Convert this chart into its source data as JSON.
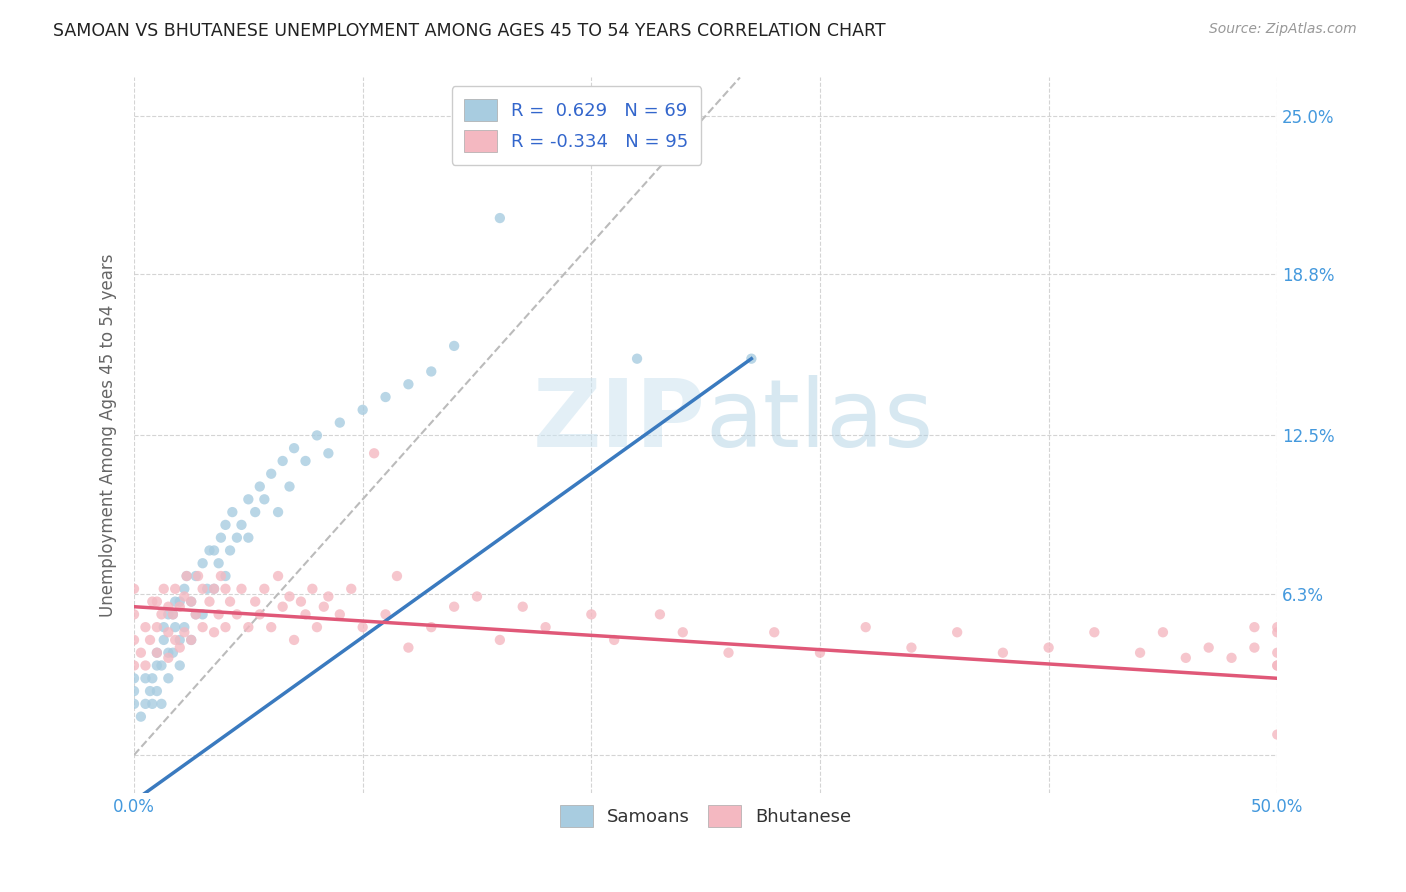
{
  "title": "SAMOAN VS BHUTANESE UNEMPLOYMENT AMONG AGES 45 TO 54 YEARS CORRELATION CHART",
  "source": "Source: ZipAtlas.com",
  "ylabel": "Unemployment Among Ages 45 to 54 years",
  "xlim": [
    0.0,
    0.5
  ],
  "ylim": [
    -0.015,
    0.265
  ],
  "ytick_positions": [
    0.0,
    0.063,
    0.125,
    0.188,
    0.25
  ],
  "ytick_labels": [
    "",
    "6.3%",
    "12.5%",
    "18.8%",
    "25.0%"
  ],
  "samoan_color": "#a8cce0",
  "bhutanese_color": "#f4b8c1",
  "samoan_line_color": "#3a7abf",
  "bhutanese_line_color": "#e05878",
  "diagonal_color": "#bbbbbb",
  "R_samoan": 0.629,
  "N_samoan": 69,
  "R_bhutanese": -0.334,
  "N_bhutanese": 95,
  "samoan_scatter_x": [
    0.0,
    0.0,
    0.0,
    0.003,
    0.005,
    0.005,
    0.007,
    0.008,
    0.008,
    0.01,
    0.01,
    0.01,
    0.012,
    0.012,
    0.013,
    0.013,
    0.015,
    0.015,
    0.015,
    0.017,
    0.017,
    0.018,
    0.018,
    0.02,
    0.02,
    0.02,
    0.022,
    0.022,
    0.023,
    0.025,
    0.025,
    0.027,
    0.027,
    0.03,
    0.03,
    0.032,
    0.033,
    0.035,
    0.035,
    0.037,
    0.038,
    0.04,
    0.04,
    0.042,
    0.043,
    0.045,
    0.047,
    0.05,
    0.05,
    0.053,
    0.055,
    0.057,
    0.06,
    0.063,
    0.065,
    0.068,
    0.07,
    0.075,
    0.08,
    0.085,
    0.09,
    0.1,
    0.11,
    0.12,
    0.13,
    0.14,
    0.16,
    0.22,
    0.27
  ],
  "samoan_scatter_y": [
    0.02,
    0.025,
    0.03,
    0.015,
    0.02,
    0.03,
    0.025,
    0.02,
    0.03,
    0.025,
    0.035,
    0.04,
    0.02,
    0.035,
    0.045,
    0.05,
    0.03,
    0.04,
    0.055,
    0.04,
    0.055,
    0.05,
    0.06,
    0.035,
    0.045,
    0.06,
    0.05,
    0.065,
    0.07,
    0.045,
    0.06,
    0.055,
    0.07,
    0.055,
    0.075,
    0.065,
    0.08,
    0.065,
    0.08,
    0.075,
    0.085,
    0.07,
    0.09,
    0.08,
    0.095,
    0.085,
    0.09,
    0.085,
    0.1,
    0.095,
    0.105,
    0.1,
    0.11,
    0.095,
    0.115,
    0.105,
    0.12,
    0.115,
    0.125,
    0.118,
    0.13,
    0.135,
    0.14,
    0.145,
    0.15,
    0.16,
    0.21,
    0.155,
    0.155
  ],
  "bhutanese_scatter_x": [
    0.0,
    0.0,
    0.0,
    0.0,
    0.003,
    0.005,
    0.005,
    0.007,
    0.008,
    0.01,
    0.01,
    0.01,
    0.012,
    0.013,
    0.015,
    0.015,
    0.015,
    0.017,
    0.018,
    0.018,
    0.02,
    0.02,
    0.022,
    0.022,
    0.023,
    0.025,
    0.025,
    0.027,
    0.028,
    0.03,
    0.03,
    0.033,
    0.035,
    0.035,
    0.037,
    0.038,
    0.04,
    0.04,
    0.042,
    0.045,
    0.047,
    0.05,
    0.053,
    0.055,
    0.057,
    0.06,
    0.063,
    0.065,
    0.068,
    0.07,
    0.073,
    0.075,
    0.078,
    0.08,
    0.083,
    0.085,
    0.09,
    0.095,
    0.1,
    0.105,
    0.11,
    0.115,
    0.12,
    0.13,
    0.14,
    0.15,
    0.16,
    0.17,
    0.18,
    0.2,
    0.21,
    0.23,
    0.24,
    0.26,
    0.28,
    0.3,
    0.32,
    0.34,
    0.36,
    0.38,
    0.4,
    0.42,
    0.44,
    0.45,
    0.46,
    0.47,
    0.48,
    0.49,
    0.49,
    0.5,
    0.5,
    0.5,
    0.5,
    0.5,
    0.5
  ],
  "bhutanese_scatter_y": [
    0.035,
    0.045,
    0.055,
    0.065,
    0.04,
    0.035,
    0.05,
    0.045,
    0.06,
    0.04,
    0.05,
    0.06,
    0.055,
    0.065,
    0.038,
    0.048,
    0.058,
    0.055,
    0.045,
    0.065,
    0.042,
    0.058,
    0.048,
    0.062,
    0.07,
    0.045,
    0.06,
    0.055,
    0.07,
    0.05,
    0.065,
    0.06,
    0.048,
    0.065,
    0.055,
    0.07,
    0.05,
    0.065,
    0.06,
    0.055,
    0.065,
    0.05,
    0.06,
    0.055,
    0.065,
    0.05,
    0.07,
    0.058,
    0.062,
    0.045,
    0.06,
    0.055,
    0.065,
    0.05,
    0.058,
    0.062,
    0.055,
    0.065,
    0.05,
    0.118,
    0.055,
    0.07,
    0.042,
    0.05,
    0.058,
    0.062,
    0.045,
    0.058,
    0.05,
    0.055,
    0.045,
    0.055,
    0.048,
    0.04,
    0.048,
    0.04,
    0.05,
    0.042,
    0.048,
    0.04,
    0.042,
    0.048,
    0.04,
    0.048,
    0.038,
    0.042,
    0.038,
    0.042,
    0.05,
    0.035,
    0.04,
    0.048,
    0.05,
    0.035,
    0.008
  ],
  "watermark_zip": "ZIP",
  "watermark_atlas": "atlas",
  "background_color": "#ffffff",
  "grid_color": "#d0d0d0"
}
